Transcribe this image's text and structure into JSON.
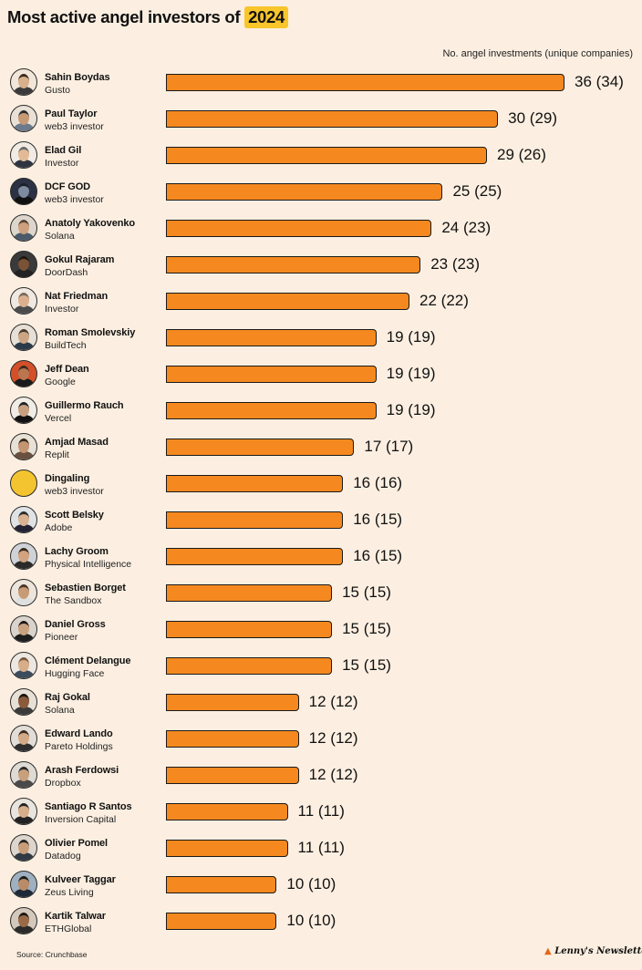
{
  "title_prefix": "Most active angel investors of ",
  "title_highlight": "2024",
  "subtitle": "No. angel investments (unique companies)",
  "source": "Source: Crunchbase",
  "logo_text": "Lenny's Newsletter",
  "colors": {
    "bar": "#f5891f",
    "highlight": "#f8c52b",
    "background": "#fcefe1"
  },
  "chart_data": {
    "type": "bar",
    "orientation": "horizontal",
    "title": "Most active angel investors of 2024",
    "xlabel": "No. angel investments (unique companies)",
    "grid": false,
    "categories": [
      "Sahin Boydas",
      "Paul Taylor",
      "Elad Gil",
      "DCF GOD",
      "Anatoly Yakovenko",
      "Gokul Rajaram",
      "Nat Friedman",
      "Roman Smolevskiy",
      "Jeff Dean",
      "Guillermo Rauch",
      "Amjad Masad",
      "Dingaling",
      "Scott Belsky",
      "Lachy Groom",
      "Sebastien Borget",
      "Daniel Gross",
      "Clément Delangue",
      "Raj Gokal",
      "Edward Lando",
      "Arash Ferdowsi",
      "Santiago R Santos",
      "Olivier Pomel",
      "Kulveer Taggar",
      "Kartik Talwar"
    ],
    "affiliations": [
      "Gusto",
      "web3 investor",
      "Investor",
      "web3 investor",
      "Solana",
      "DoorDash",
      "Investor",
      "BuildTech",
      "Google",
      "Vercel",
      "Replit",
      "web3 investor",
      "Adobe",
      "Physical Intelligence",
      "The Sandbox",
      "Pioneer",
      "Hugging Face",
      "Solana",
      "Pareto Holdings",
      "Dropbox",
      "Inversion Capital",
      "Datadog",
      "Zeus Living",
      "ETHGlobal"
    ],
    "series": [
      {
        "values": [
          36,
          30,
          29,
          25,
          24,
          23,
          22,
          19,
          19,
          19,
          17,
          16,
          16,
          16,
          15,
          15,
          15,
          12,
          12,
          12,
          11,
          11,
          10,
          10
        ]
      },
      {
        "values": [
          34,
          29,
          26,
          25,
          23,
          23,
          22,
          19,
          19,
          19,
          17,
          16,
          15,
          15,
          15,
          15,
          15,
          12,
          12,
          12,
          11,
          11,
          10,
          10
        ]
      }
    ],
    "labels": [
      "36 (34)",
      "30 (29)",
      "29 (26)",
      "25 (25)",
      "24 (23)",
      "23 (23)",
      "22 (22)",
      "19 (19)",
      "19 (19)",
      "19 (19)",
      "17 (17)",
      "16 (16)",
      "16 (15)",
      "16 (15)",
      "15 (15)",
      "15 (15)",
      "15 (15)",
      "12 (12)",
      "12 (12)",
      "12 (12)",
      "11 (11)",
      "11 (11)",
      "10 (10)",
      "10 (10)"
    ]
  }
}
